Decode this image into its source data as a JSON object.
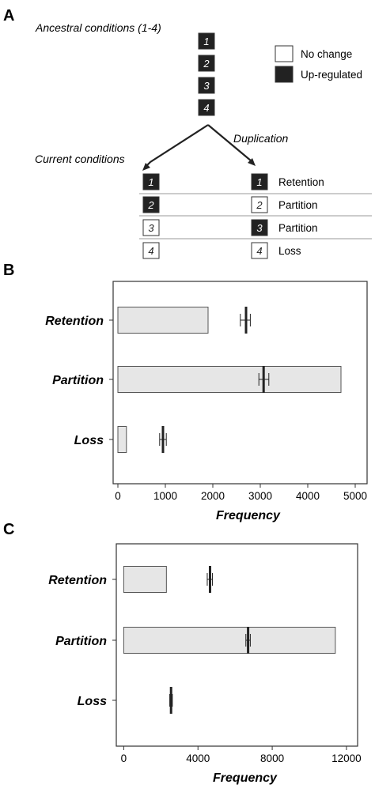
{
  "panel_a": {
    "letter": "A",
    "ancestral_title": "Ancestral conditions (1-4)",
    "current_title": "Current conditions",
    "duplication_label": "Duplication",
    "legend": [
      {
        "label": "No change",
        "fill": "#ffffff"
      },
      {
        "label": "Up-regulated",
        "fill": "#222222"
      }
    ],
    "ancestral_boxes": [
      {
        "num": "1",
        "up": true
      },
      {
        "num": "2",
        "up": true
      },
      {
        "num": "3",
        "up": true
      },
      {
        "num": "4",
        "up": true
      }
    ],
    "rows": [
      {
        "left": {
          "num": "1",
          "up": true
        },
        "right": {
          "num": "1",
          "up": true
        },
        "outcome": "Retention"
      },
      {
        "left": {
          "num": "2",
          "up": true
        },
        "right": {
          "num": "2",
          "up": false
        },
        "outcome": "Partition"
      },
      {
        "left": {
          "num": "3",
          "up": false
        },
        "right": {
          "num": "3",
          "up": true
        },
        "outcome": "Partition"
      },
      {
        "left": {
          "num": "4",
          "up": false
        },
        "right": {
          "num": "4",
          "up": false
        },
        "outcome": "Loss"
      }
    ]
  },
  "colors": {
    "bar_fill": "#e6e6e6",
    "bar_stroke": "#555555",
    "mark": "#222222",
    "axis": "#333333"
  },
  "chart_data": [
    {
      "panel": "B",
      "type": "bar",
      "orientation": "horizontal",
      "xlabel": "Frequency",
      "ylabel": "",
      "xlim": [
        -100,
        5250
      ],
      "xticks": [
        0,
        1000,
        2000,
        3000,
        4000,
        5000
      ],
      "categories": [
        "Retention",
        "Partition",
        "Loss"
      ],
      "values": [
        1900,
        4700,
        180
      ],
      "expected_mean": [
        2700,
        3070,
        950
      ],
      "expected_ci_low": [
        2580,
        2970,
        880
      ],
      "expected_ci_high": [
        2790,
        3180,
        1020
      ]
    },
    {
      "panel": "C",
      "type": "bar",
      "orientation": "horizontal",
      "xlabel": "Frequency",
      "ylabel": "",
      "xlim": [
        -400,
        12600
      ],
      "xticks": [
        0,
        4000,
        8000,
        12000
      ],
      "categories": [
        "Retention",
        "Partition",
        "Loss"
      ],
      "values": [
        2300,
        11400,
        0
      ],
      "expected_mean": [
        4650,
        6700,
        2550
      ],
      "expected_ci_low": [
        4500,
        6580,
        2480
      ],
      "expected_ci_high": [
        4780,
        6820,
        2620
      ]
    }
  ]
}
